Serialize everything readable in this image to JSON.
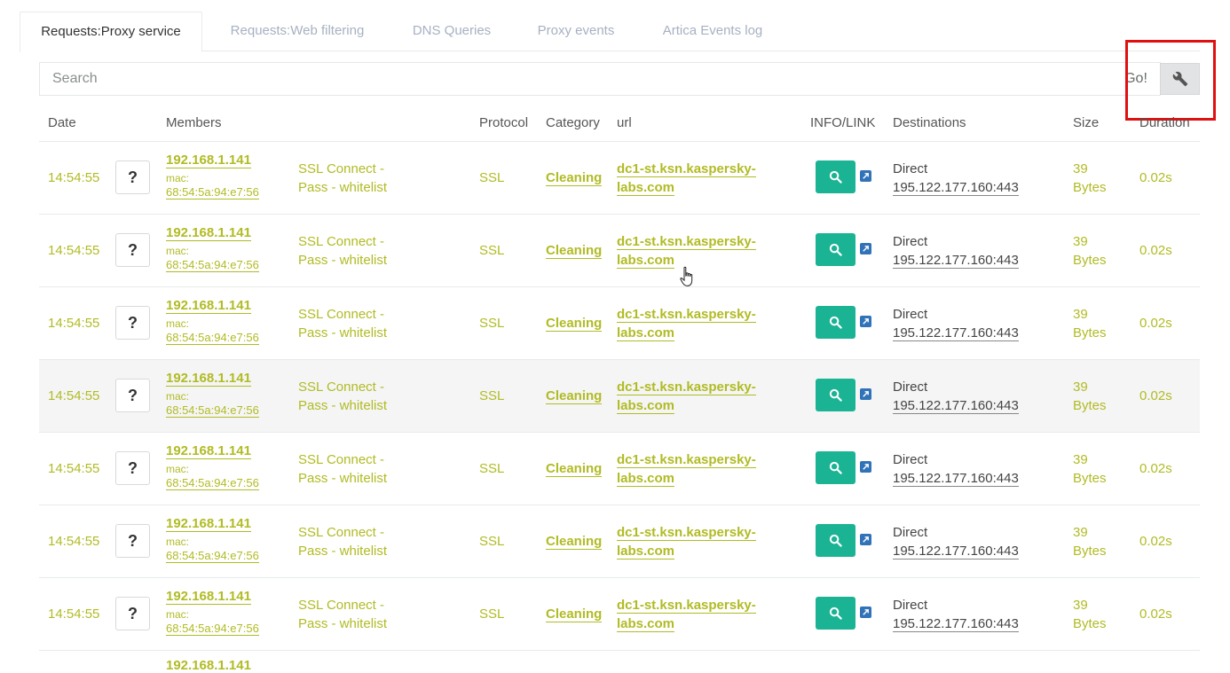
{
  "tabs": [
    {
      "label": "Requests:Proxy service",
      "active": true
    },
    {
      "label": "Requests:Web filtering",
      "active": false
    },
    {
      "label": "DNS Queries",
      "active": false
    },
    {
      "label": "Proxy events",
      "active": false
    },
    {
      "label": "Artica Events log",
      "active": false
    }
  ],
  "search": {
    "placeholder": "Search",
    "value": "",
    "go_label": "Go!",
    "tool_icon": "wrench-icon"
  },
  "table": {
    "headers": {
      "date": "Date",
      "members": "Members",
      "protocol": "Protocol",
      "category": "Category",
      "url": "url",
      "info": "INFO/LINK",
      "destinations": "Destinations",
      "size": "Size",
      "duration": "Duration"
    },
    "rows": [
      {
        "time": "14:54:55",
        "action": "?",
        "ip": "192.168.1.141",
        "mac_label": "mac:",
        "mac": "68:54:5a:94:e7:56",
        "rule1": "SSL Connect -",
        "rule2": "Pass - whitelist",
        "protocol": "SSL",
        "category": "Cleaning",
        "url1": "dc1-st.ksn.kaspersky-",
        "url2": "labs.com",
        "dest1": "Direct",
        "dest2": "195.122.177.160:443",
        "size1": "39",
        "size2": "Bytes",
        "duration": "0.02s"
      },
      {
        "time": "14:54:55",
        "action": "?",
        "ip": "192.168.1.141",
        "mac_label": "mac:",
        "mac": "68:54:5a:94:e7:56",
        "rule1": "SSL Connect -",
        "rule2": "Pass - whitelist",
        "protocol": "SSL",
        "category": "Cleaning",
        "url1": "dc1-st.ksn.kaspersky-",
        "url2": "labs.com",
        "dest1": "Direct",
        "dest2": "195.122.177.160:443",
        "size1": "39",
        "size2": "Bytes",
        "duration": "0.02s"
      },
      {
        "time": "14:54:55",
        "action": "?",
        "ip": "192.168.1.141",
        "mac_label": "mac:",
        "mac": "68:54:5a:94:e7:56",
        "rule1": "SSL Connect -",
        "rule2": "Pass - whitelist",
        "protocol": "SSL",
        "category": "Cleaning",
        "url1": "dc1-st.ksn.kaspersky-",
        "url2": "labs.com",
        "dest1": "Direct",
        "dest2": "195.122.177.160:443",
        "size1": "39",
        "size2": "Bytes",
        "duration": "0.02s"
      },
      {
        "time": "14:54:55",
        "action": "?",
        "ip": "192.168.1.141",
        "mac_label": "mac:",
        "mac": "68:54:5a:94:e7:56",
        "rule1": "SSL Connect -",
        "rule2": "Pass - whitelist",
        "protocol": "SSL",
        "category": "Cleaning",
        "url1": "dc1-st.ksn.kaspersky-",
        "url2": "labs.com",
        "dest1": "Direct",
        "dest2": "195.122.177.160:443",
        "size1": "39",
        "size2": "Bytes",
        "duration": "0.02s"
      },
      {
        "time": "14:54:55",
        "action": "?",
        "ip": "192.168.1.141",
        "mac_label": "mac:",
        "mac": "68:54:5a:94:e7:56",
        "rule1": "SSL Connect -",
        "rule2": "Pass - whitelist",
        "protocol": "SSL",
        "category": "Cleaning",
        "url1": "dc1-st.ksn.kaspersky-",
        "url2": "labs.com",
        "dest1": "Direct",
        "dest2": "195.122.177.160:443",
        "size1": "39",
        "size2": "Bytes",
        "duration": "0.02s"
      },
      {
        "time": "14:54:55",
        "action": "?",
        "ip": "192.168.1.141",
        "mac_label": "mac:",
        "mac": "68:54:5a:94:e7:56",
        "rule1": "SSL Connect -",
        "rule2": "Pass - whitelist",
        "protocol": "SSL",
        "category": "Cleaning",
        "url1": "dc1-st.ksn.kaspersky-",
        "url2": "labs.com",
        "dest1": "Direct",
        "dest2": "195.122.177.160:443",
        "size1": "39",
        "size2": "Bytes",
        "duration": "0.02s"
      },
      {
        "time": "14:54:55",
        "action": "?",
        "ip": "192.168.1.141",
        "mac_label": "mac:",
        "mac": "68:54:5a:94:e7:56",
        "rule1": "SSL Connect -",
        "rule2": "Pass - whitelist",
        "protocol": "SSL",
        "category": "Cleaning",
        "url1": "dc1-st.ksn.kaspersky-",
        "url2": "labs.com",
        "dest1": "Direct",
        "dest2": "195.122.177.160:443",
        "size1": "39",
        "size2": "Bytes",
        "duration": "0.02s"
      }
    ],
    "partial_row_ip": "192.168.1.141"
  },
  "colors": {
    "accent": "#b1bb24",
    "info_button": "#1ab394",
    "link_icon": "#3173b8",
    "highlight": "#e01010"
  }
}
